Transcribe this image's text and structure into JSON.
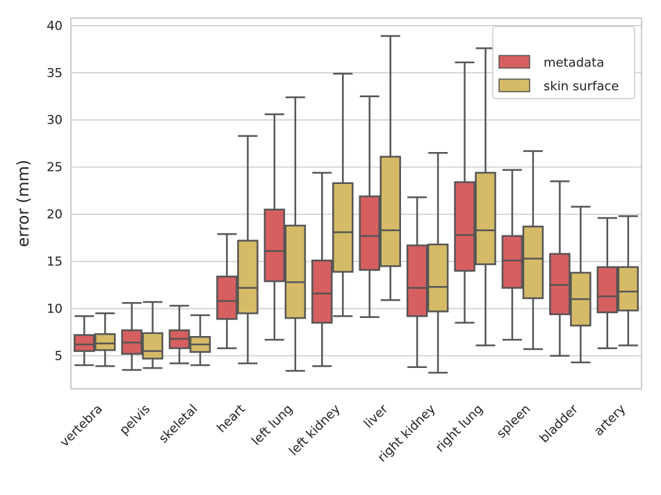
{
  "chart_data": {
    "type": "boxplot",
    "title": "",
    "xlabel": "",
    "ylabel": "error (mm)",
    "ylim": [
      1.5,
      40.8
    ],
    "yticks": [
      5,
      10,
      15,
      20,
      25,
      30,
      35,
      40
    ],
    "grid": true,
    "legend_position": "top-right",
    "categories": [
      "vertebra",
      "pelvis",
      "skeletal",
      "heart",
      "left lung",
      "left kidney",
      "liver",
      "right kidney",
      "right lung",
      "spleen",
      "bladder",
      "artery"
    ],
    "series": [
      {
        "name": "metadata",
        "color": "#d65f5f",
        "boxes": [
          {
            "whislo": 4.0,
            "q1": 5.5,
            "med": 6.2,
            "q3": 7.2,
            "whishi": 9.2
          },
          {
            "whislo": 3.5,
            "q1": 5.2,
            "med": 6.4,
            "q3": 7.7,
            "whishi": 10.6
          },
          {
            "whislo": 4.2,
            "q1": 5.8,
            "med": 6.8,
            "q3": 7.7,
            "whishi": 10.3
          },
          {
            "whislo": 5.8,
            "q1": 8.9,
            "med": 10.8,
            "q3": 13.4,
            "whishi": 17.9
          },
          {
            "whislo": 6.7,
            "q1": 12.9,
            "med": 16.1,
            "q3": 20.5,
            "whishi": 30.6
          },
          {
            "whislo": 3.9,
            "q1": 8.5,
            "med": 11.6,
            "q3": 15.1,
            "whishi": 24.4
          },
          {
            "whislo": 9.1,
            "q1": 14.1,
            "med": 17.7,
            "q3": 21.9,
            "whishi": 32.5
          },
          {
            "whislo": 3.8,
            "q1": 9.2,
            "med": 12.2,
            "q3": 16.7,
            "whishi": 21.8
          },
          {
            "whislo": 8.5,
            "q1": 14.0,
            "med": 17.8,
            "q3": 23.4,
            "whishi": 36.1
          },
          {
            "whislo": 6.7,
            "q1": 12.2,
            "med": 15.1,
            "q3": 17.7,
            "whishi": 24.7
          },
          {
            "whislo": 5.0,
            "q1": 9.4,
            "med": 12.5,
            "q3": 15.8,
            "whishi": 23.5
          },
          {
            "whislo": 5.8,
            "q1": 9.6,
            "med": 11.3,
            "q3": 14.4,
            "whishi": 19.6
          }
        ]
      },
      {
        "name": "skin surface",
        "color": "#d5bb67",
        "boxes": [
          {
            "whislo": 3.9,
            "q1": 5.6,
            "med": 6.3,
            "q3": 7.3,
            "whishi": 9.5
          },
          {
            "whislo": 3.7,
            "q1": 4.7,
            "med": 5.5,
            "q3": 7.4,
            "whishi": 10.7
          },
          {
            "whislo": 4.0,
            "q1": 5.4,
            "med": 6.2,
            "q3": 7.0,
            "whishi": 9.3
          },
          {
            "whislo": 4.2,
            "q1": 9.5,
            "med": 12.2,
            "q3": 17.2,
            "whishi": 28.3
          },
          {
            "whislo": 3.4,
            "q1": 9.0,
            "med": 12.8,
            "q3": 18.8,
            "whishi": 32.4
          },
          {
            "whislo": 9.2,
            "q1": 13.9,
            "med": 18.1,
            "q3": 23.3,
            "whishi": 34.9
          },
          {
            "whislo": 10.9,
            "q1": 14.5,
            "med": 18.3,
            "q3": 26.1,
            "whishi": 38.9
          },
          {
            "whislo": 3.2,
            "q1": 9.7,
            "med": 12.3,
            "q3": 16.8,
            "whishi": 26.5
          },
          {
            "whislo": 6.1,
            "q1": 14.7,
            "med": 18.3,
            "q3": 24.4,
            "whishi": 37.6
          },
          {
            "whislo": 5.7,
            "q1": 11.1,
            "med": 15.3,
            "q3": 18.7,
            "whishi": 26.7
          },
          {
            "whislo": 4.3,
            "q1": 8.2,
            "med": 11.0,
            "q3": 13.8,
            "whishi": 20.8
          },
          {
            "whislo": 6.1,
            "q1": 9.8,
            "med": 11.8,
            "q3": 14.4,
            "whishi": 19.8
          }
        ]
      }
    ],
    "colors": {
      "line": "#555555",
      "grid": "#cccccc",
      "frame": "#cccccc",
      "legend_border": "#cccccc"
    }
  }
}
